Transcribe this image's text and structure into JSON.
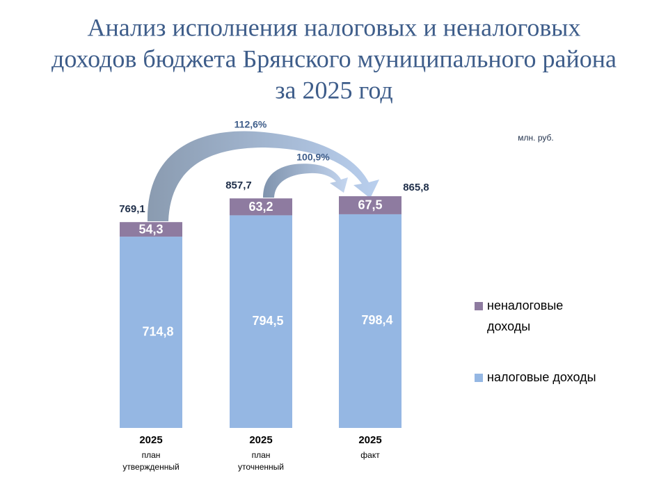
{
  "chart_data": {
    "type": "stacked_bar",
    "title": [
      "Анализ исполнения налоговых и неналоговых",
      "доходов бюджета Брянского муниципального района",
      "за 2025 год"
    ],
    "unit": "млн. руб.",
    "categories": [
      "2025",
      "2025",
      "2025"
    ],
    "category_notes": [
      [
        "план",
        "утвержденный"
      ],
      [
        "план",
        "уточненный"
      ],
      [
        "факт"
      ]
    ],
    "series": [
      {
        "name": "налоговые доходы",
        "color": "#95b7e3",
        "values": [
          714.8,
          794.5,
          798.4
        ],
        "value_labels": [
          "714,8",
          "794,5",
          "798,4"
        ]
      },
      {
        "name": "неналоговые доходы",
        "color": "#8e7ba0",
        "values": [
          54.3,
          63.2,
          67.5
        ],
        "value_labels": [
          "54,3",
          "63,2",
          "67,5"
        ]
      }
    ],
    "totals": [
      769.1,
      857.7,
      865.8
    ],
    "total_labels": [
      "769,1",
      "857,7",
      "865,8"
    ],
    "annotations": [
      "112,6%",
      "100,9%"
    ]
  }
}
